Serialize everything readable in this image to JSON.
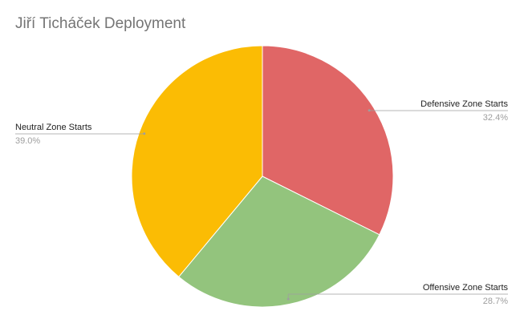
{
  "chart_data": {
    "type": "pie",
    "title": "Jiří Ticháček Deployment",
    "slices": [
      {
        "label": "Defensive Zone Starts",
        "value": 32.4,
        "value_label": "32.4%",
        "color": "#e06666"
      },
      {
        "label": "Offensive Zone Starts",
        "value": 28.7,
        "value_label": "28.7%",
        "color": "#93c47d"
      },
      {
        "label": "Neutral Zone Starts",
        "value": 39.0,
        "value_label": "39.0%",
        "color": "#fbbc04"
      }
    ],
    "start_angle": "12 o'clock",
    "direction": "clockwise",
    "legend": "none",
    "labels": "outside with leader lines"
  }
}
